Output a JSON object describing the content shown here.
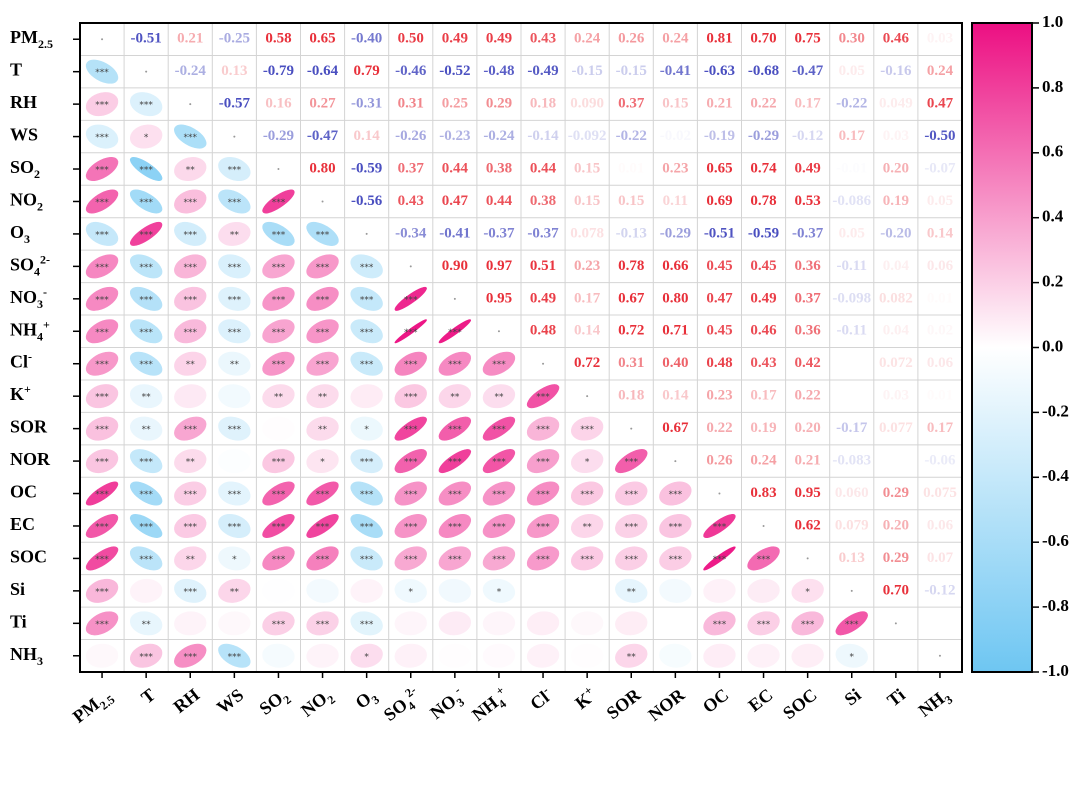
{
  "chart_data": {
    "type": "correlation",
    "variables": [
      "PM2.5",
      "T",
      "RH",
      "WS",
      "SO2",
      "NO2",
      "O3",
      "SO42-",
      "NO3-",
      "NH4+",
      "Cl-",
      "K+",
      "SOR",
      "NOR",
      "OC",
      "EC",
      "SOC",
      "Si",
      "Ti",
      "NH3"
    ],
    "values": [
      [
        null,
        -0.51,
        0.21,
        -0.25,
        0.58,
        0.65,
        -0.4,
        0.5,
        0.49,
        0.49,
        0.43,
        0.24,
        0.26,
        0.24,
        0.81,
        0.7,
        0.75,
        0.3,
        0.46,
        0.03
      ],
      [
        null,
        null,
        -0.24,
        0.13,
        -0.79,
        -0.64,
        0.79,
        -0.46,
        -0.52,
        -0.48,
        -0.49,
        -0.15,
        -0.15,
        -0.41,
        -0.63,
        -0.68,
        -0.47,
        0.05,
        -0.16,
        0.24
      ],
      [
        null,
        null,
        null,
        -0.57,
        0.16,
        0.27,
        -0.31,
        0.31,
        0.25,
        0.29,
        0.18,
        0.09,
        0.37,
        0.15,
        0.21,
        0.22,
        0.17,
        -0.22,
        0.049,
        0.47
      ],
      [
        null,
        null,
        null,
        null,
        -0.29,
        -0.47,
        0.14,
        -0.26,
        -0.23,
        -0.24,
        -0.14,
        -0.092,
        -0.22,
        -0.02,
        -0.19,
        -0.29,
        -0.12,
        0.17,
        0.03,
        -0.5
      ],
      [
        null,
        null,
        null,
        null,
        null,
        0.8,
        -0.59,
        0.37,
        0.44,
        0.38,
        0.44,
        0.15,
        0.01,
        0.23,
        0.65,
        0.74,
        0.49,
        -0.01,
        0.2,
        -0.07
      ],
      [
        null,
        null,
        null,
        null,
        null,
        null,
        -0.56,
        0.43,
        0.47,
        0.44,
        0.38,
        0.15,
        0.15,
        0.11,
        0.69,
        0.78,
        0.53,
        -0.086,
        0.19,
        0.05
      ],
      [
        null,
        null,
        null,
        null,
        null,
        null,
        null,
        -0.34,
        -0.41,
        -0.37,
        -0.37,
        0.078,
        -0.13,
        -0.29,
        -0.51,
        -0.59,
        -0.37,
        0.05,
        -0.2,
        0.14
      ],
      [
        null,
        null,
        null,
        null,
        null,
        null,
        null,
        null,
        0.9,
        0.97,
        0.51,
        0.23,
        0.78,
        0.66,
        0.45,
        0.45,
        0.36,
        -0.11,
        0.04,
        0.06
      ],
      [
        null,
        null,
        null,
        null,
        null,
        null,
        null,
        null,
        null,
        0.95,
        0.49,
        0.17,
        0.67,
        0.8,
        0.47,
        0.49,
        0.37,
        -0.098,
        0.082,
        0.01
      ],
      [
        null,
        null,
        null,
        null,
        null,
        null,
        null,
        null,
        null,
        null,
        0.48,
        0.14,
        0.72,
        0.71,
        0.45,
        0.46,
        0.36,
        -0.11,
        0.04,
        0.02
      ],
      [
        null,
        null,
        null,
        null,
        null,
        null,
        null,
        null,
        null,
        null,
        null,
        0.72,
        0.31,
        0.4,
        0.48,
        0.43,
        0.42,
        0.0,
        0.072,
        0.06
      ],
      [
        null,
        null,
        null,
        null,
        null,
        null,
        null,
        null,
        null,
        null,
        null,
        null,
        0.18,
        0.14,
        0.23,
        0.17,
        0.22,
        0.0,
        0.03,
        0.01
      ],
      [
        null,
        null,
        null,
        null,
        null,
        null,
        null,
        null,
        null,
        null,
        null,
        null,
        null,
        0.67,
        0.22,
        0.19,
        0.2,
        -0.17,
        0.077,
        0.17
      ],
      [
        null,
        null,
        null,
        null,
        null,
        null,
        null,
        null,
        null,
        null,
        null,
        null,
        null,
        null,
        0.26,
        0.24,
        0.21,
        -0.083,
        0.0,
        -0.06
      ],
      [
        null,
        null,
        null,
        null,
        null,
        null,
        null,
        null,
        null,
        null,
        null,
        null,
        null,
        null,
        null,
        0.83,
        0.95,
        0.06,
        0.29,
        0.075
      ],
      [
        null,
        null,
        null,
        null,
        null,
        null,
        null,
        null,
        null,
        null,
        null,
        null,
        null,
        null,
        null,
        null,
        0.62,
        0.079,
        0.2,
        0.06
      ],
      [
        null,
        null,
        null,
        null,
        null,
        null,
        null,
        null,
        null,
        null,
        null,
        null,
        null,
        null,
        null,
        null,
        null,
        0.13,
        0.29,
        0.07
      ],
      [
        null,
        null,
        null,
        null,
        null,
        null,
        null,
        null,
        null,
        null,
        null,
        null,
        null,
        null,
        null,
        null,
        null,
        null,
        0.7,
        -0.12
      ],
      [
        null,
        null,
        null,
        null,
        null,
        null,
        null,
        null,
        null,
        null,
        null,
        null,
        null,
        null,
        null,
        null,
        null,
        null,
        null,
        0.0
      ],
      [
        null,
        null,
        null,
        null,
        null,
        null,
        null,
        null,
        null,
        null,
        null,
        null,
        null,
        null,
        null,
        null,
        null,
        null,
        null,
        null
      ]
    ],
    "value_labels": [
      [
        null,
        "-0.51",
        "0.21",
        "-0.25",
        "0.58",
        "0.65",
        "-0.40",
        "0.50",
        "0.49",
        "0.49",
        "0.43",
        "0.24",
        "0.26",
        "0.24",
        "0.81",
        "0.70",
        "0.75",
        "0.30",
        "0.46",
        "0.03"
      ],
      [
        null,
        null,
        "-0.24",
        "0.13",
        "-0.79",
        "-0.64",
        "0.79",
        "-0.46",
        "-0.52",
        "-0.48",
        "-0.49",
        "-0.15",
        "-0.15",
        "-0.41",
        "-0.63",
        "-0.68",
        "-0.47",
        "0.05",
        "-0.16",
        "0.24"
      ],
      [
        null,
        null,
        null,
        "-0.57",
        "0.16",
        "0.27",
        "-0.31",
        "0.31",
        "0.25",
        "0.29",
        "0.18",
        "0.090",
        "0.37",
        "0.15",
        "0.21",
        "0.22",
        "0.17",
        "-0.22",
        "0.049",
        "0.47"
      ],
      [
        null,
        null,
        null,
        null,
        "-0.29",
        "-0.47",
        "0.14",
        "-0.26",
        "-0.23",
        "-0.24",
        "-0.14",
        "-0.092",
        "-0.22",
        "-0.02",
        "-0.19",
        "-0.29",
        "-0.12",
        "0.17",
        "0.03",
        "-0.50"
      ],
      [
        null,
        null,
        null,
        null,
        null,
        "0.80",
        "-0.59",
        "0.37",
        "0.44",
        "0.38",
        "0.44",
        "0.15",
        "0.01",
        "0.23",
        "0.65",
        "0.74",
        "0.49",
        "-0.01",
        "0.20",
        "-0.07"
      ],
      [
        null,
        null,
        null,
        null,
        null,
        null,
        "-0.56",
        "0.43",
        "0.47",
        "0.44",
        "0.38",
        "0.15",
        "0.15",
        "0.11",
        "0.69",
        "0.78",
        "0.53",
        "-0.086",
        "0.19",
        "0.05"
      ],
      [
        null,
        null,
        null,
        null,
        null,
        null,
        null,
        "-0.34",
        "-0.41",
        "-0.37",
        "-0.37",
        "0.078",
        "-0.13",
        "-0.29",
        "-0.51",
        "-0.59",
        "-0.37",
        "0.05",
        "-0.20",
        "0.14"
      ],
      [
        null,
        null,
        null,
        null,
        null,
        null,
        null,
        null,
        "0.90",
        "0.97",
        "0.51",
        "0.23",
        "0.78",
        "0.66",
        "0.45",
        "0.45",
        "0.36",
        "-0.11",
        "0.04",
        "0.06"
      ],
      [
        null,
        null,
        null,
        null,
        null,
        null,
        null,
        null,
        null,
        "0.95",
        "0.49",
        "0.17",
        "0.67",
        "0.80",
        "0.47",
        "0.49",
        "0.37",
        "-0.098",
        "0.082",
        "0.01"
      ],
      [
        null,
        null,
        null,
        null,
        null,
        null,
        null,
        null,
        null,
        null,
        "0.48",
        "0.14",
        "0.72",
        "0.71",
        "0.45",
        "0.46",
        "0.36",
        "-0.11",
        "0.04",
        "0.02"
      ],
      [
        null,
        null,
        null,
        null,
        null,
        null,
        null,
        null,
        null,
        null,
        null,
        "0.72",
        "0.31",
        "0.40",
        "0.48",
        "0.43",
        "0.42",
        "0.00",
        "0.072",
        "0.06"
      ],
      [
        null,
        null,
        null,
        null,
        null,
        null,
        null,
        null,
        null,
        null,
        null,
        null,
        "0.18",
        "0.14",
        "0.23",
        "0.17",
        "0.22",
        "0.00",
        "0.03",
        "0.01"
      ],
      [
        null,
        null,
        null,
        null,
        null,
        null,
        null,
        null,
        null,
        null,
        null,
        null,
        null,
        "0.67",
        "0.22",
        "0.19",
        "0.20",
        "-0.17",
        "0.077",
        "0.17"
      ],
      [
        null,
        null,
        null,
        null,
        null,
        null,
        null,
        null,
        null,
        null,
        null,
        null,
        null,
        null,
        "0.26",
        "0.24",
        "0.21",
        "-0.083",
        "0.00",
        "-0.06"
      ],
      [
        null,
        null,
        null,
        null,
        null,
        null,
        null,
        null,
        null,
        null,
        null,
        null,
        null,
        null,
        null,
        "0.83",
        "0.95",
        "0.060",
        "0.29",
        "0.075"
      ],
      [
        null,
        null,
        null,
        null,
        null,
        null,
        null,
        null,
        null,
        null,
        null,
        null,
        null,
        null,
        null,
        null,
        "0.62",
        "0.079",
        "0.20",
        "0.06"
      ],
      [
        null,
        null,
        null,
        null,
        null,
        null,
        null,
        null,
        null,
        null,
        null,
        null,
        null,
        null,
        null,
        null,
        null,
        "0.13",
        "0.29",
        "0.07"
      ],
      [
        null,
        null,
        null,
        null,
        null,
        null,
        null,
        null,
        null,
        null,
        null,
        null,
        null,
        null,
        null,
        null,
        null,
        null,
        "0.70",
        "-0.12"
      ],
      [
        null,
        null,
        null,
        null,
        null,
        null,
        null,
        null,
        null,
        null,
        null,
        null,
        null,
        null,
        null,
        null,
        null,
        null,
        null,
        "0.00"
      ],
      [
        null,
        null,
        null,
        null,
        null,
        null,
        null,
        null,
        null,
        null,
        null,
        null,
        null,
        null,
        null,
        null,
        null,
        null,
        null,
        null
      ]
    ],
    "significance": [
      [],
      [
        "***"
      ],
      [
        "***",
        "***"
      ],
      [
        "***",
        "*",
        "***"
      ],
      [
        "***",
        "***",
        "**",
        "***"
      ],
      [
        "***",
        "***",
        "***",
        "***",
        "***"
      ],
      [
        "***",
        "***",
        "***",
        "**",
        "***",
        "***"
      ],
      [
        "***",
        "***",
        "***",
        "***",
        "***",
        "***",
        "***"
      ],
      [
        "***",
        "***",
        "***",
        "***",
        "***",
        "***",
        "***",
        "***"
      ],
      [
        "***",
        "***",
        "***",
        "***",
        "***",
        "***",
        "***",
        "***",
        "***"
      ],
      [
        "***",
        "***",
        "**",
        "**",
        "***",
        "***",
        "***",
        "***",
        "***",
        "***"
      ],
      [
        "***",
        "**",
        null,
        null,
        "**",
        "**",
        null,
        "***",
        "**",
        "**",
        "***"
      ],
      [
        "***",
        "**",
        "***",
        "***",
        null,
        "**",
        "*",
        "***",
        "***",
        "***",
        "***",
        "***"
      ],
      [
        "***",
        "***",
        "**",
        null,
        "***",
        "*",
        "***",
        "***",
        "***",
        "***",
        "***",
        "*",
        "***"
      ],
      [
        "***",
        "***",
        "***",
        "***",
        "***",
        "***",
        "***",
        "***",
        "***",
        "***",
        "***",
        "***",
        "***",
        "***"
      ],
      [
        "***",
        "***",
        "***",
        "***",
        "***",
        "***",
        "***",
        "***",
        "***",
        "***",
        "***",
        "**",
        "***",
        "***",
        "***"
      ],
      [
        "***",
        "***",
        "**",
        "*",
        "***",
        "***",
        "***",
        "***",
        "***",
        "***",
        "***",
        "***",
        "***",
        "***",
        "***",
        "***"
      ],
      [
        "***",
        null,
        "***",
        "**",
        null,
        null,
        null,
        "*",
        null,
        "*",
        null,
        null,
        "**",
        null,
        null,
        null,
        "*"
      ],
      [
        "***",
        "**",
        null,
        null,
        "***",
        "***",
        "***",
        null,
        null,
        null,
        null,
        null,
        null,
        null,
        "***",
        "***",
        "***",
        "***"
      ],
      [
        null,
        "***",
        "***",
        "***",
        null,
        null,
        "*",
        null,
        null,
        null,
        null,
        null,
        "**",
        null,
        null,
        null,
        null,
        "*",
        null
      ]
    ],
    "clim": [
      -1,
      1
    ],
    "cticks": [
      {
        "value": -1,
        "label": "-1.0"
      },
      -0.8,
      -0.6,
      -0.4,
      -0.2,
      {
        "value": 0,
        "label": "0.0"
      },
      0.2,
      0.4,
      0.6,
      0.8,
      {
        "value": 1,
        "label": "1.0"
      }
    ],
    "color_low": "#6ec6f2",
    "color_mid": "#ffffff",
    "color_high": "#ec0f82",
    "text_color_low": "#4a4fc0",
    "text_color_high": "#e8303a",
    "grid": true
  }
}
